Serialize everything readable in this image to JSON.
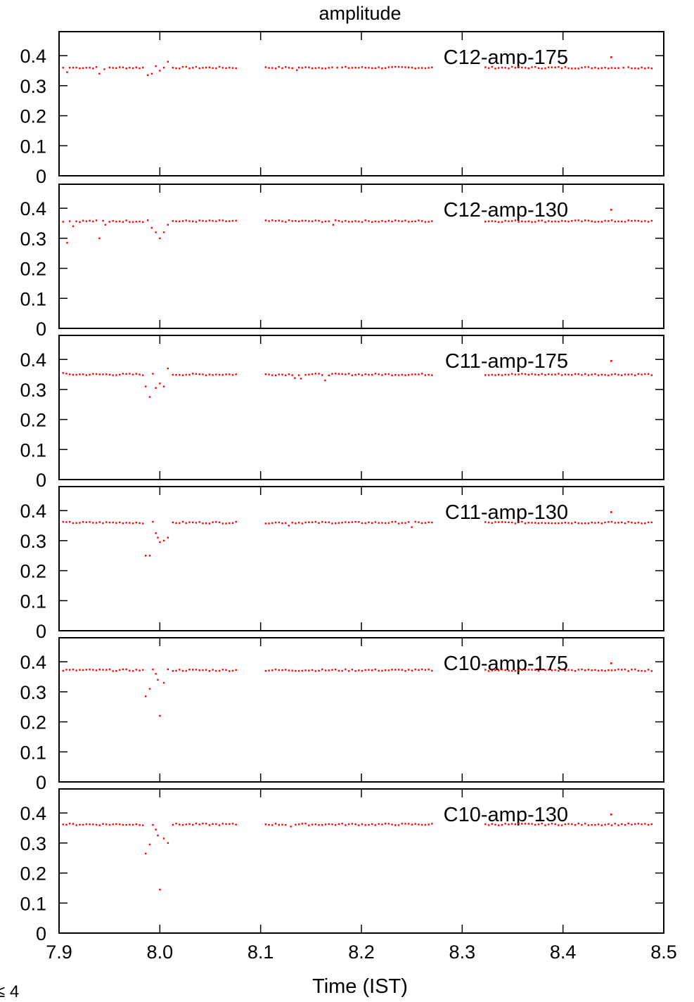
{
  "chart_data": {
    "type": "scatter",
    "title": "amplitude",
    "xlabel": "Time (IST)",
    "footnote": "≤ 4",
    "xlim": [
      7.9,
      8.5
    ],
    "xticks": [
      "7.9",
      "8.0",
      "8.1",
      "8.2",
      "8.3",
      "8.4",
      "8.5"
    ],
    "ylim": [
      0,
      0.48
    ],
    "yticks": [
      "0",
      "0.1",
      "0.2",
      "0.3",
      "0.4"
    ],
    "legend_position": "top-right",
    "point_color": "#ff0000",
    "panels": [
      {
        "name": "C12-amp-175",
        "base": 0.36,
        "points": [
          [
            7.904,
            0.36
          ],
          [
            7.908,
            0.345
          ],
          [
            7.914,
            0.36
          ],
          [
            7.94,
            0.34
          ],
          [
            7.945,
            0.355
          ],
          [
            7.988,
            0.335
          ],
          [
            7.992,
            0.34
          ],
          [
            7.996,
            0.365
          ],
          [
            8.0,
            0.35
          ],
          [
            8.004,
            0.36
          ],
          [
            8.008,
            0.38
          ],
          [
            8.136,
            0.352
          ],
          [
            8.176,
            0.36
          ],
          [
            8.46,
            0.36
          ]
        ]
      },
      {
        "name": "C12-amp-130",
        "base": 0.357,
        "points": [
          [
            7.904,
            0.355
          ],
          [
            7.908,
            0.285
          ],
          [
            7.914,
            0.34
          ],
          [
            7.94,
            0.3
          ],
          [
            7.946,
            0.345
          ],
          [
            7.95,
            0.355
          ],
          [
            7.988,
            0.36
          ],
          [
            7.992,
            0.335
          ],
          [
            7.996,
            0.32
          ],
          [
            8.0,
            0.3
          ],
          [
            8.004,
            0.32
          ],
          [
            8.008,
            0.345
          ],
          [
            8.172,
            0.345
          ]
        ]
      },
      {
        "name": "C11-amp-175",
        "base": 0.35,
        "points": [
          [
            7.904,
            0.355
          ],
          [
            7.986,
            0.31
          ],
          [
            7.99,
            0.275
          ],
          [
            7.996,
            0.305
          ],
          [
            8.0,
            0.32
          ],
          [
            8.004,
            0.31
          ],
          [
            8.008,
            0.37
          ],
          [
            8.164,
            0.33
          ],
          [
            8.134,
            0.338
          ],
          [
            8.14,
            0.336
          ]
        ]
      },
      {
        "name": "C11-amp-130",
        "base": 0.36,
        "points": [
          [
            7.986,
            0.25
          ],
          [
            7.99,
            0.25
          ],
          [
            7.996,
            0.325
          ],
          [
            7.998,
            0.31
          ],
          [
            8.0,
            0.295
          ],
          [
            8.004,
            0.3
          ],
          [
            8.008,
            0.31
          ],
          [
            8.128,
            0.35
          ],
          [
            8.25,
            0.345
          ]
        ]
      },
      {
        "name": "C10-amp-175",
        "base": 0.372,
        "points": [
          [
            7.986,
            0.285
          ],
          [
            7.99,
            0.31
          ],
          [
            7.996,
            0.36
          ],
          [
            7.998,
            0.34
          ],
          [
            8.0,
            0.22
          ],
          [
            8.004,
            0.33
          ],
          [
            8.008,
            0.375
          ]
        ]
      },
      {
        "name": "C10-amp-130",
        "base": 0.362,
        "points": [
          [
            7.986,
            0.265
          ],
          [
            7.99,
            0.295
          ],
          [
            7.996,
            0.345
          ],
          [
            7.998,
            0.325
          ],
          [
            8.0,
            0.145
          ],
          [
            8.004,
            0.315
          ],
          [
            8.008,
            0.3
          ],
          [
            8.13,
            0.355
          ]
        ]
      }
    ]
  }
}
